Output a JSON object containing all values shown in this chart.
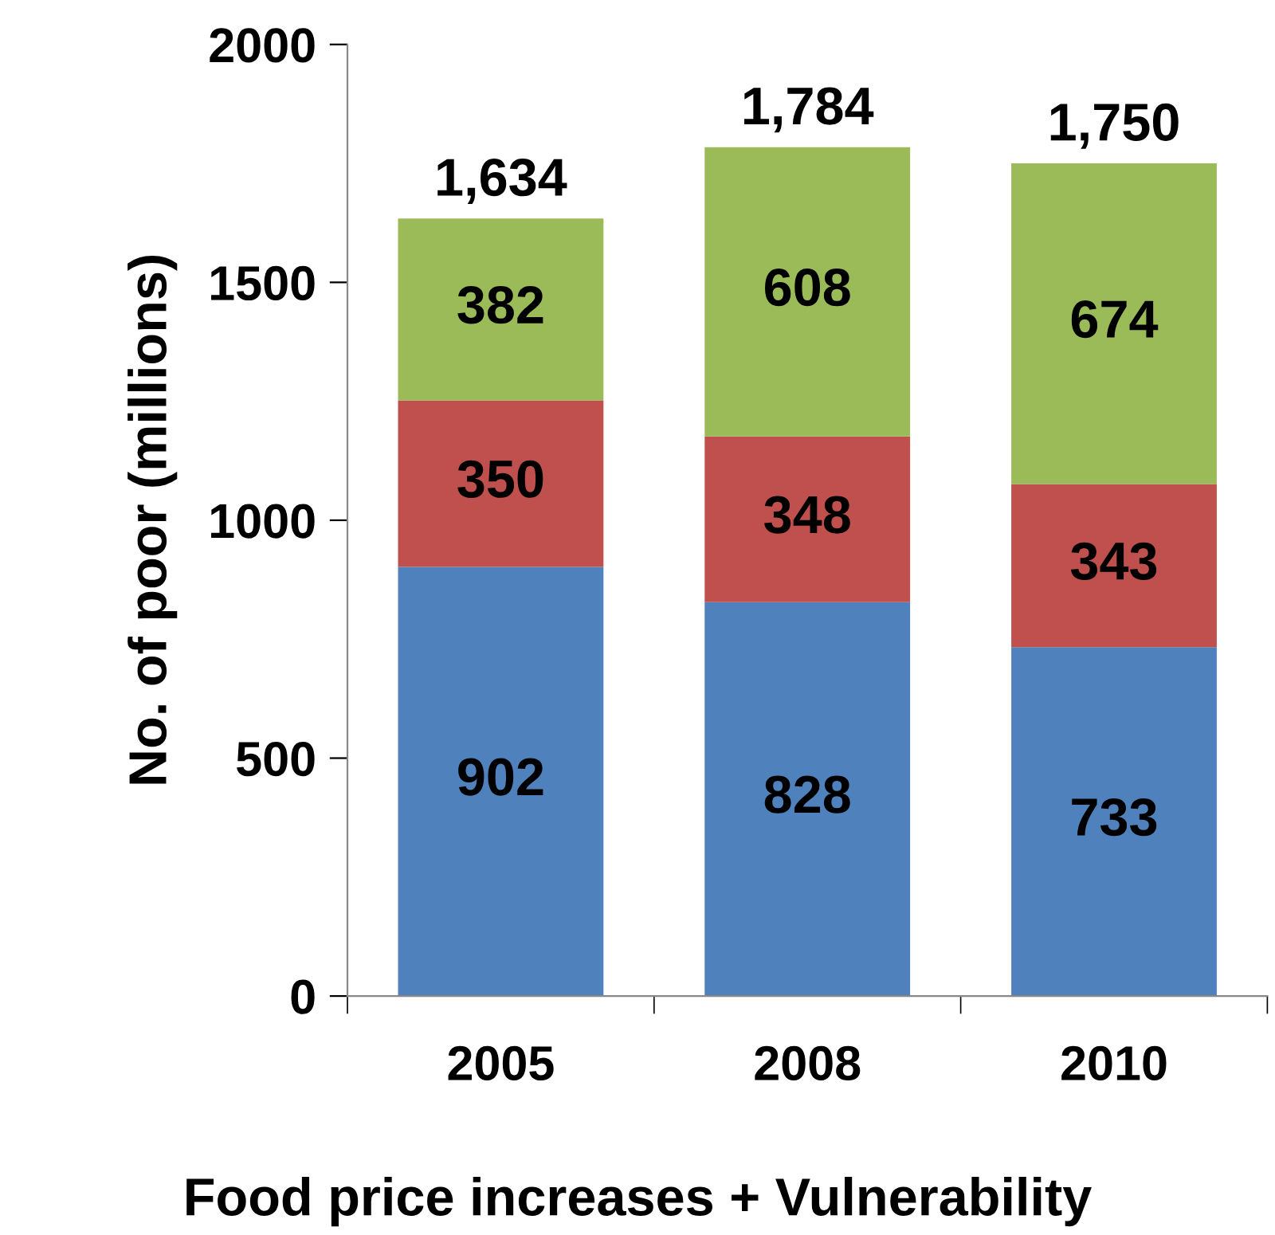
{
  "chart_data": {
    "type": "bar",
    "stacked": true,
    "xlabel": "Food price increases + Vulnerability",
    "ylabel": "No. of poor (millions)",
    "categories": [
      "2005",
      "2008",
      "2010"
    ],
    "series": [
      {
        "color": "#4f81bd",
        "values": [
          902,
          828,
          733
        ]
      },
      {
        "color": "#c0504d",
        "values": [
          350,
          348,
          343
        ]
      },
      {
        "color": "#9bbb59",
        "values": [
          382,
          608,
          674
        ]
      }
    ],
    "totals": [
      "1,634",
      "1,784",
      "1,750"
    ],
    "data_labels": true,
    "ylim": [
      0,
      2000
    ],
    "yticks": [
      0,
      500,
      1000,
      1500,
      2000
    ],
    "grid": false,
    "legend": false
  }
}
